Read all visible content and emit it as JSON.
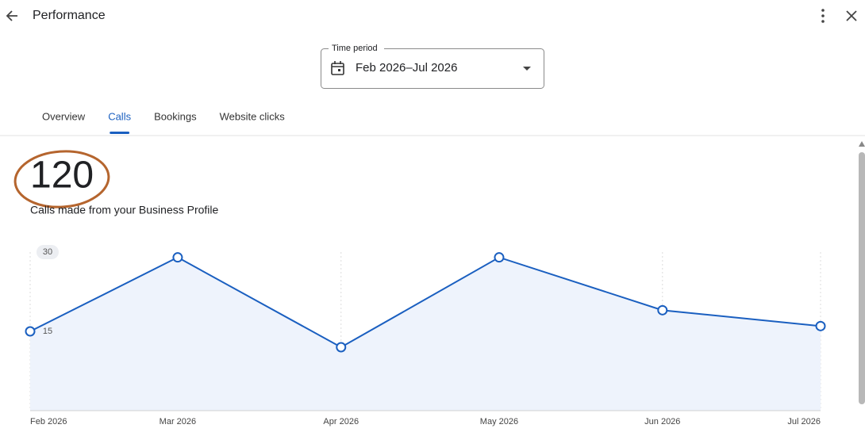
{
  "header": {
    "title": "Performance"
  },
  "time_period": {
    "label": "Time period",
    "value": "Feb 2026–Jul 2026"
  },
  "tabs": [
    {
      "label": "Overview"
    },
    {
      "label": "Calls",
      "selected": true
    },
    {
      "label": "Bookings"
    },
    {
      "label": "Website clicks"
    }
  ],
  "summary": {
    "total": 120,
    "description": "Calls made from your Business Profile"
  },
  "chart_data": {
    "type": "line",
    "categories": [
      "Feb 2026",
      "Mar 2026",
      "Apr 2026",
      "May 2026",
      "Jun 2026",
      "Jul 2026"
    ],
    "values": [
      15,
      29,
      12,
      29,
      19,
      16
    ],
    "color": "#1a5fc0",
    "fill_color": "#eef3fc",
    "ylim": [
      0,
      30
    ],
    "yticks": [
      15,
      30
    ],
    "grid": true
  }
}
